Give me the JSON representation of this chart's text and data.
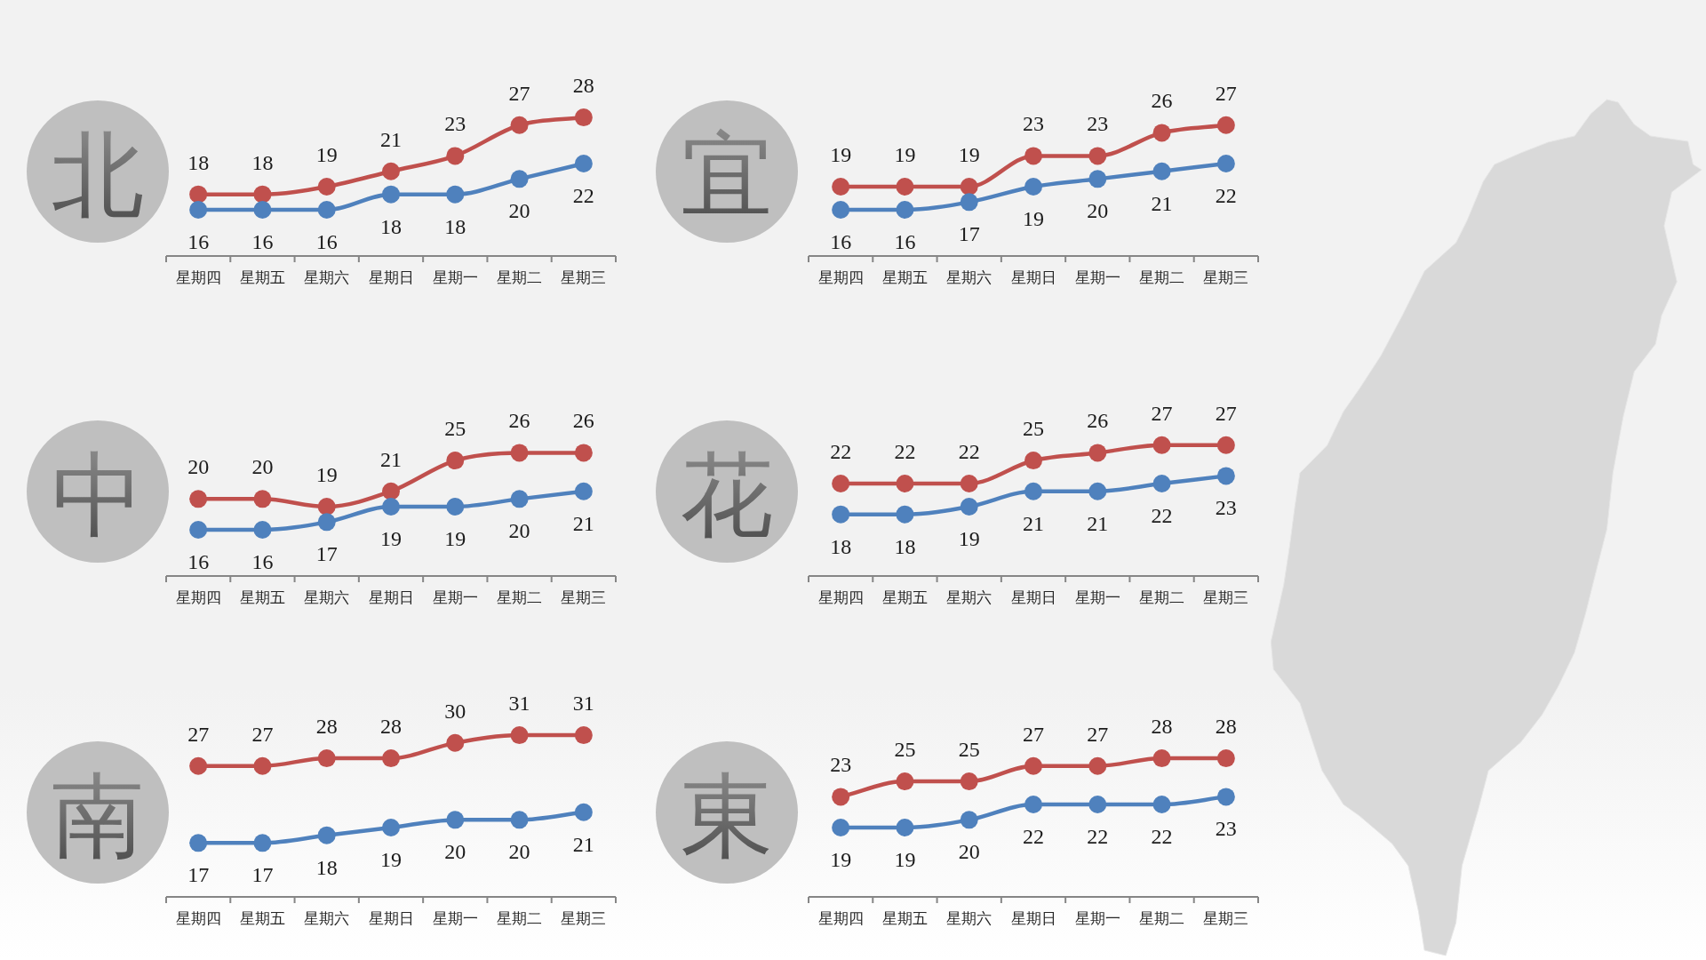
{
  "chart_data": [
    {
      "type": "line",
      "title": "北",
      "categories": [
        "星期四",
        "星期五",
        "星期六",
        "星期日",
        "星期一",
        "星期二",
        "星期三"
      ],
      "series": [
        {
          "color": "#c0504d",
          "values": [
            18,
            18,
            19,
            21,
            23,
            27,
            28
          ]
        },
        {
          "color": "#4f81bd",
          "values": [
            16,
            16,
            16,
            18,
            18,
            20,
            22
          ]
        }
      ],
      "tick_labels": "x",
      "data_labels": true,
      "marker": "circle",
      "line_style": "solid"
    },
    {
      "type": "line",
      "title": "宜",
      "categories": [
        "星期四",
        "星期五",
        "星期六",
        "星期日",
        "星期一",
        "星期二",
        "星期三"
      ],
      "series": [
        {
          "color": "#c0504d",
          "values": [
            19,
            19,
            19,
            23,
            23,
            26,
            27
          ]
        },
        {
          "color": "#4f81bd",
          "values": [
            16,
            16,
            17,
            19,
            20,
            21,
            22
          ]
        }
      ],
      "tick_labels": "x",
      "data_labels": true,
      "marker": "circle",
      "line_style": "solid"
    },
    {
      "type": "line",
      "title": "中",
      "categories": [
        "星期四",
        "星期五",
        "星期六",
        "星期日",
        "星期一",
        "星期二",
        "星期三"
      ],
      "series": [
        {
          "color": "#c0504d",
          "values": [
            20,
            20,
            19,
            21,
            25,
            26,
            26
          ]
        },
        {
          "color": "#4f81bd",
          "values": [
            16,
            16,
            17,
            19,
            19,
            20,
            21
          ]
        }
      ],
      "tick_labels": "x",
      "data_labels": true,
      "marker": "circle",
      "line_style": "solid"
    },
    {
      "type": "line",
      "title": "花",
      "categories": [
        "星期四",
        "星期五",
        "星期六",
        "星期日",
        "星期一",
        "星期二",
        "星期三"
      ],
      "series": [
        {
          "color": "#c0504d",
          "values": [
            22,
            22,
            22,
            25,
            26,
            27,
            27
          ]
        },
        {
          "color": "#4f81bd",
          "values": [
            18,
            18,
            19,
            21,
            21,
            22,
            23
          ]
        }
      ],
      "tick_labels": "x",
      "data_labels": true,
      "marker": "circle",
      "line_style": "solid"
    },
    {
      "type": "line",
      "title": "南",
      "categories": [
        "星期四",
        "星期五",
        "星期六",
        "星期日",
        "星期一",
        "星期二",
        "星期三"
      ],
      "series": [
        {
          "color": "#c0504d",
          "values": [
            27,
            27,
            28,
            28,
            30,
            31,
            31
          ]
        },
        {
          "color": "#4f81bd",
          "values": [
            17,
            17,
            18,
            19,
            20,
            20,
            21
          ]
        }
      ],
      "tick_labels": "x",
      "data_labels": true,
      "marker": "circle",
      "line_style": "solid"
    },
    {
      "type": "line",
      "title": "東",
      "categories": [
        "星期四",
        "星期五",
        "星期六",
        "星期日",
        "星期一",
        "星期二",
        "星期三"
      ],
      "series": [
        {
          "color": "#c0504d",
          "values": [
            23,
            25,
            25,
            27,
            27,
            28,
            28
          ]
        },
        {
          "color": "#4f81bd",
          "values": [
            19,
            19,
            20,
            22,
            22,
            22,
            23
          ]
        }
      ],
      "tick_labels": "x",
      "data_labels": true,
      "marker": "circle",
      "line_style": "solid"
    }
  ]
}
